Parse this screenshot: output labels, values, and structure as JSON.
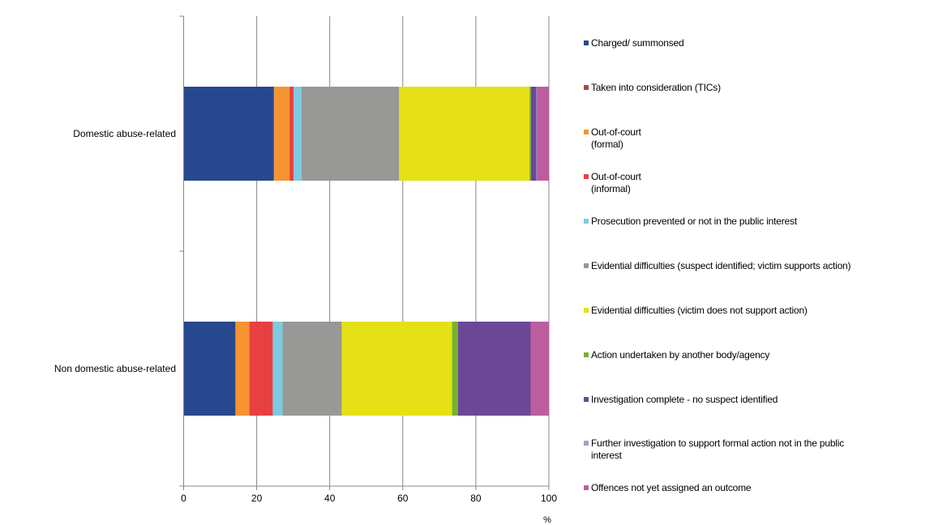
{
  "chart_data": {
    "type": "bar",
    "orientation": "horizontal",
    "stacked": true,
    "categories": [
      "Domestic abuse-related",
      "Non domestic abuse-related"
    ],
    "xlabel": "%",
    "xlim": [
      0,
      100
    ],
    "xticks": [
      "0",
      "20",
      "40",
      "60",
      "80",
      "100"
    ],
    "grid": true,
    "legend_position": "right",
    "series": [
      {
        "name": "Charged/ summonsed",
        "color": "#27488f",
        "values": [
          24.7,
          14.1
        ]
      },
      {
        "name": "Taken into consideration (TICs)",
        "color": "#a84848",
        "values": [
          0.1,
          0.1
        ]
      },
      {
        "name": "Out-of-court\n(formal)",
        "color": "#f59430",
        "values": [
          4.2,
          3.8
        ]
      },
      {
        "name": "Out-of-court\n(informal)",
        "color": "#e84040",
        "values": [
          1.1,
          6.4
        ]
      },
      {
        "name": "Prosecution prevented or not in the public interest",
        "color": "#7fc9e1",
        "values": [
          2.2,
          2.7
        ]
      },
      {
        "name": "Evidential difficulties (suspect identified; victim supports action)",
        "color": "#989897",
        "values": [
          26.7,
          16.2
        ]
      },
      {
        "name": "Evidential difficulties (victim does not support action)",
        "color": "#e6e017",
        "values": [
          35.7,
          30.2
        ]
      },
      {
        "name": "Action undertaken by another body/agency",
        "color": "#76b22e",
        "values": [
          0.4,
          1.6
        ]
      },
      {
        "name": "Investigation complete - no suspect identified",
        "color": "#6a4896",
        "values": [
          1.5,
          19.9
        ]
      },
      {
        "name": "Further investigation to support formal action not in the public\ninterest",
        "color": "#a99bcd",
        "values": [
          0.1,
          0.0
        ]
      },
      {
        "name": "Offences not yet assigned an outcome",
        "color": "#bd5d9f",
        "values": [
          3.3,
          5.0
        ]
      }
    ]
  }
}
